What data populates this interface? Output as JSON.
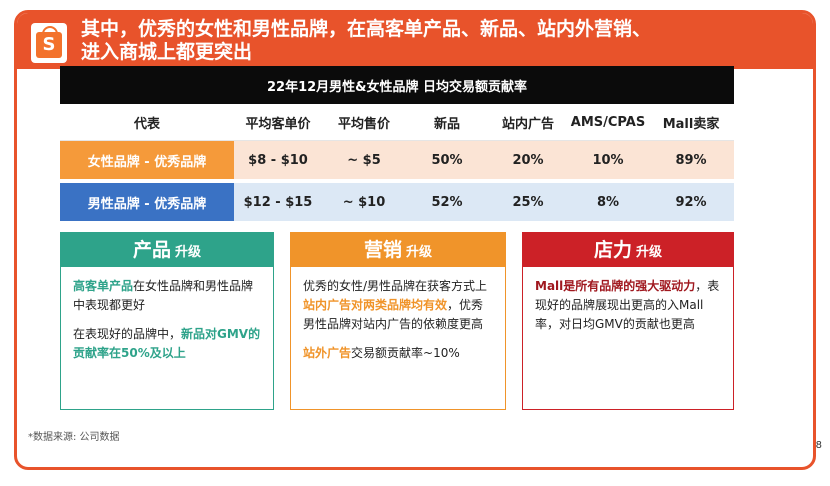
{
  "header": {
    "logo_letter": "S",
    "title_line1": "其中，优秀的女性和男性品牌，在高客单产品、新品、站内外营销、",
    "title_line2": "进入商城上都更突出"
  },
  "table": {
    "title": "22年12月男性&女性品牌 日均交易额贡献率",
    "columns": [
      "代表",
      "平均客单价",
      "平均售价",
      "新品",
      "站内广告",
      "AMS/CPAS",
      "Mall卖家"
    ],
    "rows": [
      {
        "label": "女性品牌 - 优秀品牌",
        "cells": [
          "$8 - $10",
          "~ $5",
          "50%",
          "20%",
          "10%",
          "89%"
        ]
      },
      {
        "label": "男性品牌 - 优秀品牌",
        "cells": [
          "$12 - $15",
          "~ $10",
          "52%",
          "25%",
          "8%",
          "92%"
        ]
      }
    ]
  },
  "cards": {
    "product": {
      "title": "产品",
      "sub": "升级",
      "p1_hl": "高客单产品",
      "p1_rest": "在女性品牌和男性品牌中表现都更好",
      "p2_pre": "在表现好的品牌中，",
      "p2_hl": "新品对GMV的贡献率在50%及以上"
    },
    "marketing": {
      "title": "营销",
      "sub": "升级",
      "p1_a": "优秀的女性/男性品牌在获客方式上",
      "p1_hl": "站内广告对两类品牌均有效",
      "p1_b": "，优秀男性品牌对站内广告的依赖度更高",
      "p2_hl": "站外广告",
      "p2_rest": "交易额贡献率~10%"
    },
    "store": {
      "title": "店力",
      "sub": "升级",
      "p1_hl": "Mall是所有品牌的强大驱动力",
      "p1_rest": "，表现好的品牌展现出更高的入Mall率，对日均GMV的贡献也更高"
    }
  },
  "footer": {
    "source": "*数据来源: 公司数据",
    "page": "8"
  },
  "colors": {
    "brand_orange": "#e8532b",
    "green": "#2ea38a",
    "orange": "#f0942a",
    "red": "#cc2127",
    "blue": "#3a72c4"
  }
}
